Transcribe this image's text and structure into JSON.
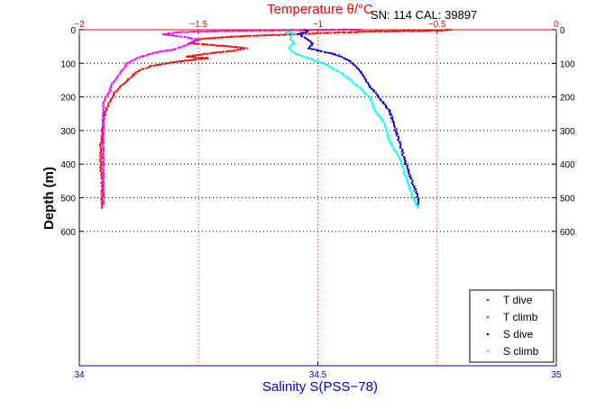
{
  "info_text": "SN: 114  CAL: 39897",
  "chart_data": {
    "type": "scatter",
    "top_axis": {
      "label": "Temperature θ/°C",
      "range": [
        -2,
        0
      ],
      "ticks": [
        -2,
        -1.5,
        -1,
        -0.5,
        0
      ],
      "tick_labels": [
        "−2",
        "−1.5",
        "−1",
        "−0.5",
        "0"
      ],
      "color": "#ff0000"
    },
    "bottom_axis": {
      "label": "Salinity S(PSS−78)",
      "range": [
        34,
        35
      ],
      "ticks": [
        34,
        34.5,
        35
      ],
      "tick_labels": [
        "34",
        "34.5",
        "35"
      ],
      "color": "#0000cc"
    },
    "y_axis": {
      "label": "Depth (m)",
      "range": [
        0,
        1000
      ],
      "reversed": true,
      "ticks": [
        0,
        100,
        200,
        300,
        400,
        500,
        600
      ],
      "tick_labels": [
        "0",
        "100",
        "200",
        "300",
        "400",
        "500",
        "600"
      ]
    },
    "grid": "dotted",
    "legend_position": "bottom-right",
    "series": [
      {
        "name": "T dive",
        "axis": "top",
        "color": "#ff0000",
        "points": [
          [
            -0.44,
            0
          ],
          [
            -0.46,
            1
          ],
          [
            -0.52,
            3
          ],
          [
            -0.62,
            4
          ],
          [
            -0.75,
            5
          ],
          [
            -0.9,
            8
          ],
          [
            -1.05,
            12
          ],
          [
            -1.2,
            16
          ],
          [
            -1.35,
            20
          ],
          [
            -1.5,
            28
          ],
          [
            -1.54,
            40
          ],
          [
            -1.4,
            48
          ],
          [
            -1.3,
            55
          ],
          [
            -1.35,
            62
          ],
          [
            -1.45,
            70
          ],
          [
            -1.55,
            80
          ],
          [
            -1.46,
            85
          ],
          [
            -1.55,
            92
          ],
          [
            -1.62,
            98
          ],
          [
            -1.7,
            108
          ],
          [
            -1.76,
            125
          ],
          [
            -1.79,
            145
          ],
          [
            -1.82,
            165
          ],
          [
            -1.85,
            185
          ],
          [
            -1.87,
            210
          ],
          [
            -1.89,
            240
          ],
          [
            -1.9,
            270
          ],
          [
            -1.905,
            300
          ],
          [
            -1.91,
            350
          ],
          [
            -1.91,
            400
          ],
          [
            -1.905,
            450
          ],
          [
            -1.905,
            500
          ],
          [
            -1.905,
            530
          ]
        ]
      },
      {
        "name": "T climb",
        "axis": "top",
        "color": "#ff00ff",
        "points": [
          [
            -0.82,
            0
          ],
          [
            -1.1,
            1
          ],
          [
            -1.4,
            4
          ],
          [
            -1.6,
            8
          ],
          [
            -1.65,
            14
          ],
          [
            -1.55,
            22
          ],
          [
            -1.5,
            30
          ],
          [
            -1.55,
            45
          ],
          [
            -1.6,
            58
          ],
          [
            -1.68,
            68
          ],
          [
            -1.75,
            82
          ],
          [
            -1.8,
            100
          ],
          [
            -1.83,
            130
          ],
          [
            -1.86,
            160
          ],
          [
            -1.87,
            180
          ],
          [
            -1.88,
            190
          ],
          [
            -1.9,
            220
          ],
          [
            -1.9,
            260
          ],
          [
            -1.9,
            300
          ],
          [
            -1.9,
            350
          ],
          [
            -1.9,
            400
          ],
          [
            -1.9,
            450
          ],
          [
            -1.9,
            500
          ],
          [
            -1.9,
            520
          ]
        ]
      },
      {
        "name": "S dive",
        "axis": "bottom",
        "color": "#0000cc",
        "points": [
          [
            34.47,
            0
          ],
          [
            34.48,
            5
          ],
          [
            34.46,
            12
          ],
          [
            34.47,
            22
          ],
          [
            34.49,
            40
          ],
          [
            34.48,
            55
          ],
          [
            34.51,
            65
          ],
          [
            34.54,
            75
          ],
          [
            34.57,
            95
          ],
          [
            34.59,
            125
          ],
          [
            34.61,
            170
          ],
          [
            34.63,
            205
          ],
          [
            34.65,
            240
          ],
          [
            34.66,
            280
          ],
          [
            34.67,
            330
          ],
          [
            34.68,
            380
          ],
          [
            34.69,
            420
          ],
          [
            34.7,
            460
          ],
          [
            34.71,
            500
          ],
          [
            34.71,
            520
          ]
        ]
      },
      {
        "name": "S climb",
        "axis": "bottom",
        "color": "#00ffff",
        "points": [
          [
            34.44,
            0
          ],
          [
            34.43,
            5
          ],
          [
            34.45,
            10
          ],
          [
            34.44,
            25
          ],
          [
            34.45,
            40
          ],
          [
            34.44,
            55
          ],
          [
            34.45,
            70
          ],
          [
            34.48,
            85
          ],
          [
            34.52,
            105
          ],
          [
            34.56,
            140
          ],
          [
            34.59,
            175
          ],
          [
            34.61,
            205
          ],
          [
            34.62,
            240
          ],
          [
            34.64,
            280
          ],
          [
            34.65,
            330
          ],
          [
            34.67,
            380
          ],
          [
            34.68,
            420
          ],
          [
            34.69,
            460
          ],
          [
            34.7,
            500
          ],
          [
            34.71,
            530
          ]
        ]
      }
    ]
  }
}
